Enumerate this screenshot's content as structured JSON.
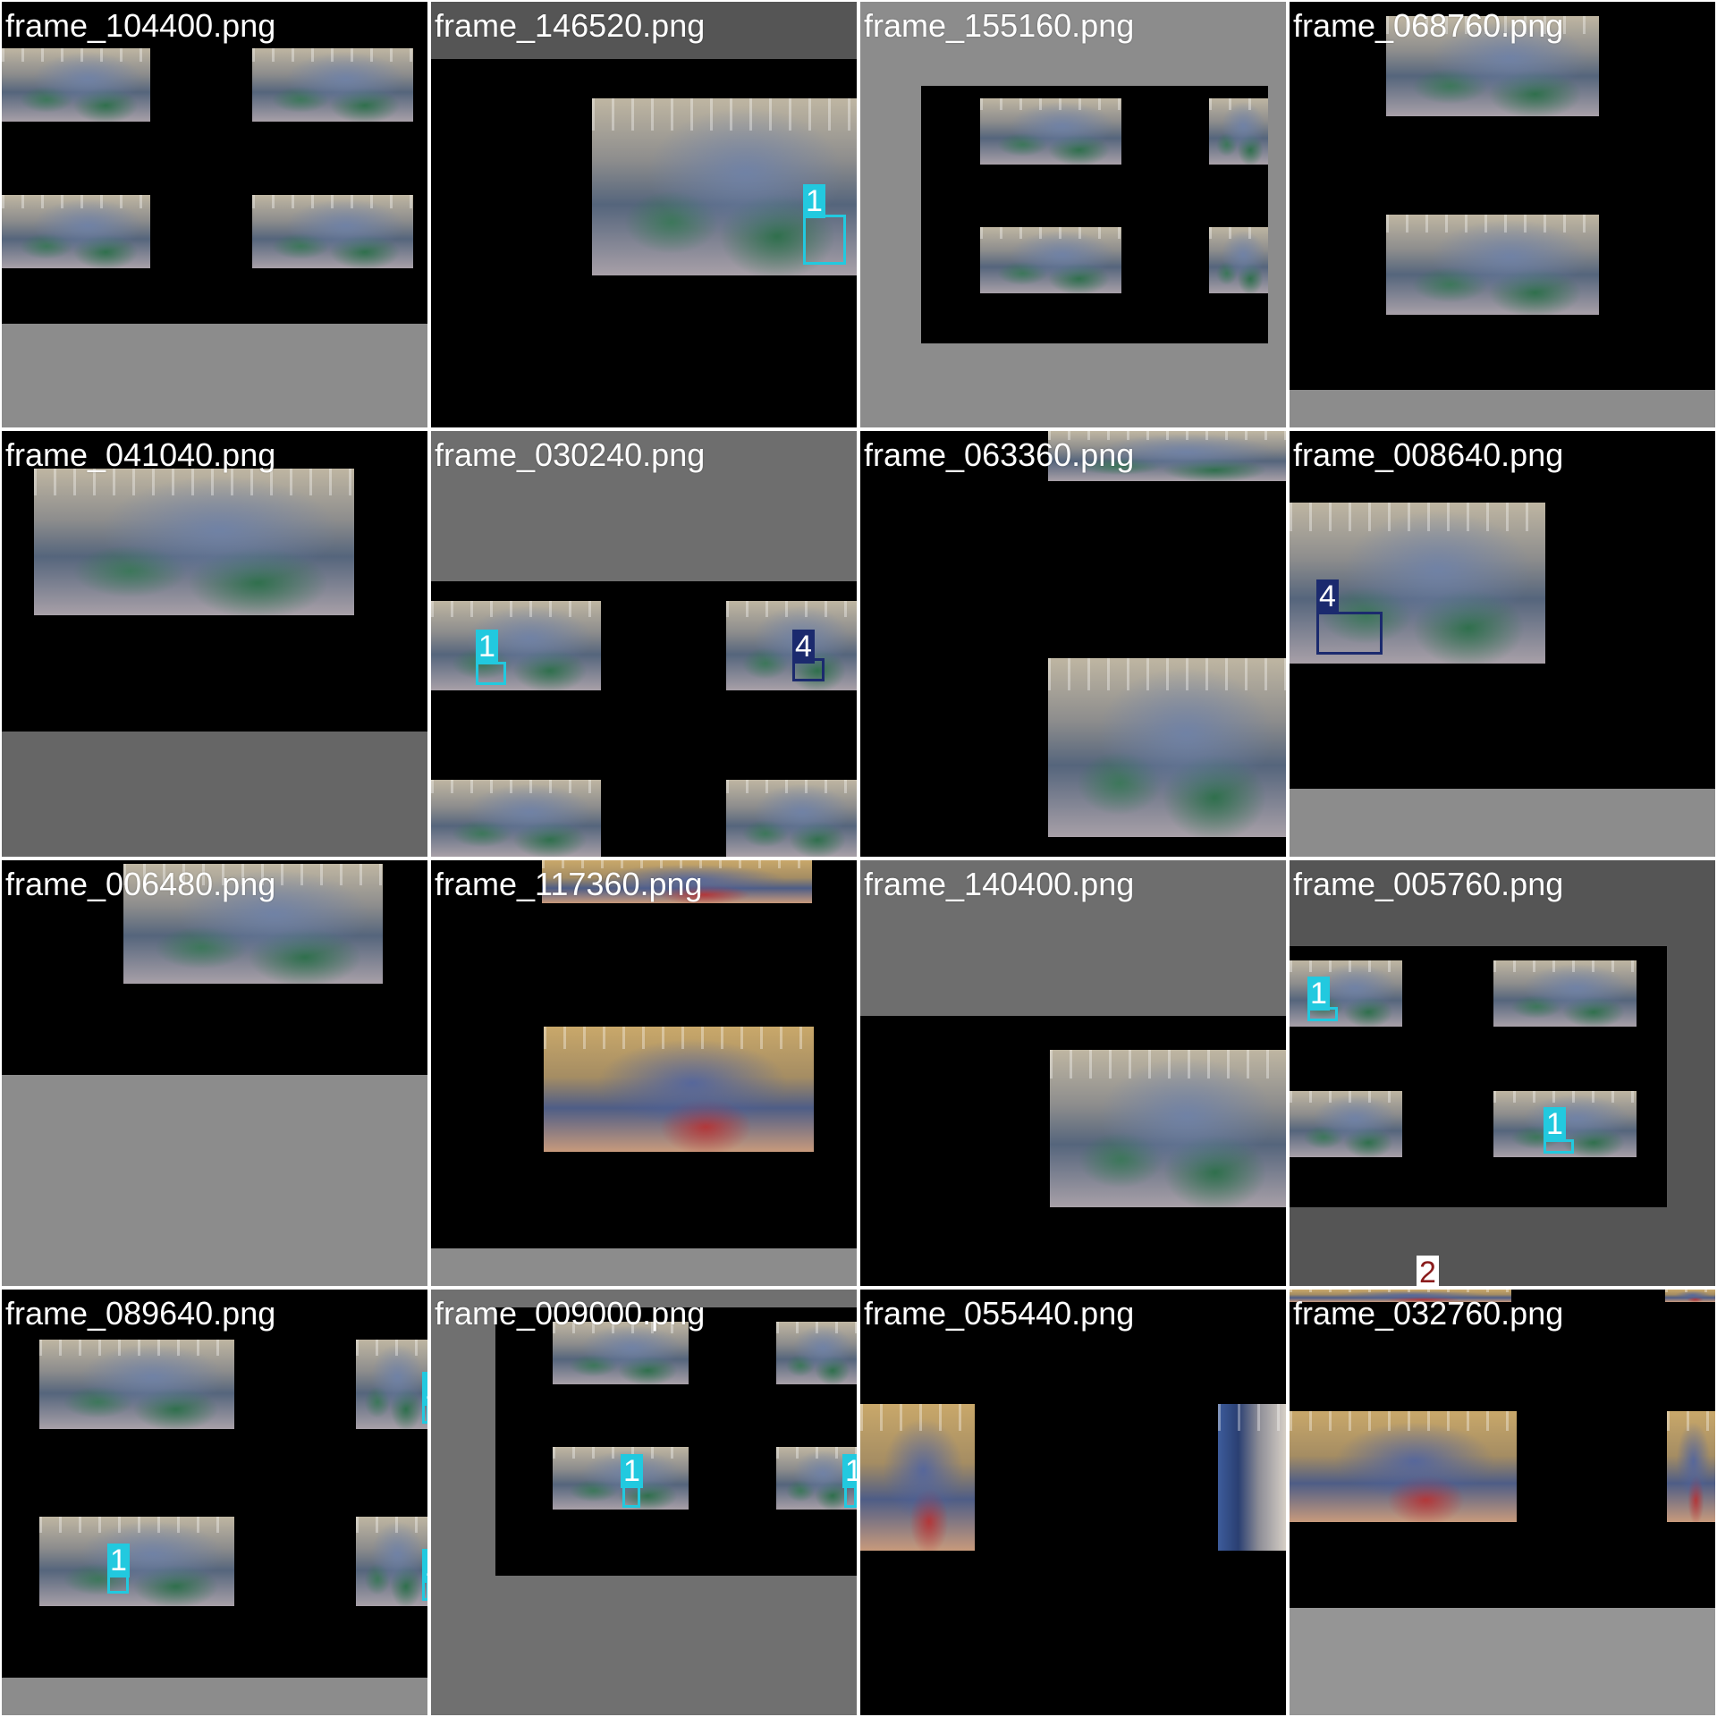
{
  "tiles": [
    {
      "filename": "frame_104400.png"
    },
    {
      "filename": "frame_146520.png"
    },
    {
      "filename": "frame_155160.png"
    },
    {
      "filename": "frame_068760.png"
    },
    {
      "filename": "frame_041040.png"
    },
    {
      "filename": "frame_030240.png"
    },
    {
      "filename": "frame_063360.png"
    },
    {
      "filename": "frame_008640.png"
    },
    {
      "filename": "frame_006480.png"
    },
    {
      "filename": "frame_117360.png"
    },
    {
      "filename": "frame_140400.png"
    },
    {
      "filename": "frame_005760.png"
    },
    {
      "filename": "frame_089640.png"
    },
    {
      "filename": "frame_009000.png"
    },
    {
      "filename": "frame_055440.png"
    },
    {
      "filename": "frame_032760.png"
    }
  ],
  "detection_labels": {
    "cyan_class": "1",
    "navy_class": "4",
    "red_class": "2"
  },
  "colors": {
    "class_1_cyan": "#22c9df",
    "class_4_navy": "#1b2a6e",
    "class_2_label_text": "#8a1c1c",
    "letterbox_gray_light": "#8c8c8c",
    "letterbox_gray_dark": "#5c5c5c",
    "tile_border": "#ffffff"
  }
}
